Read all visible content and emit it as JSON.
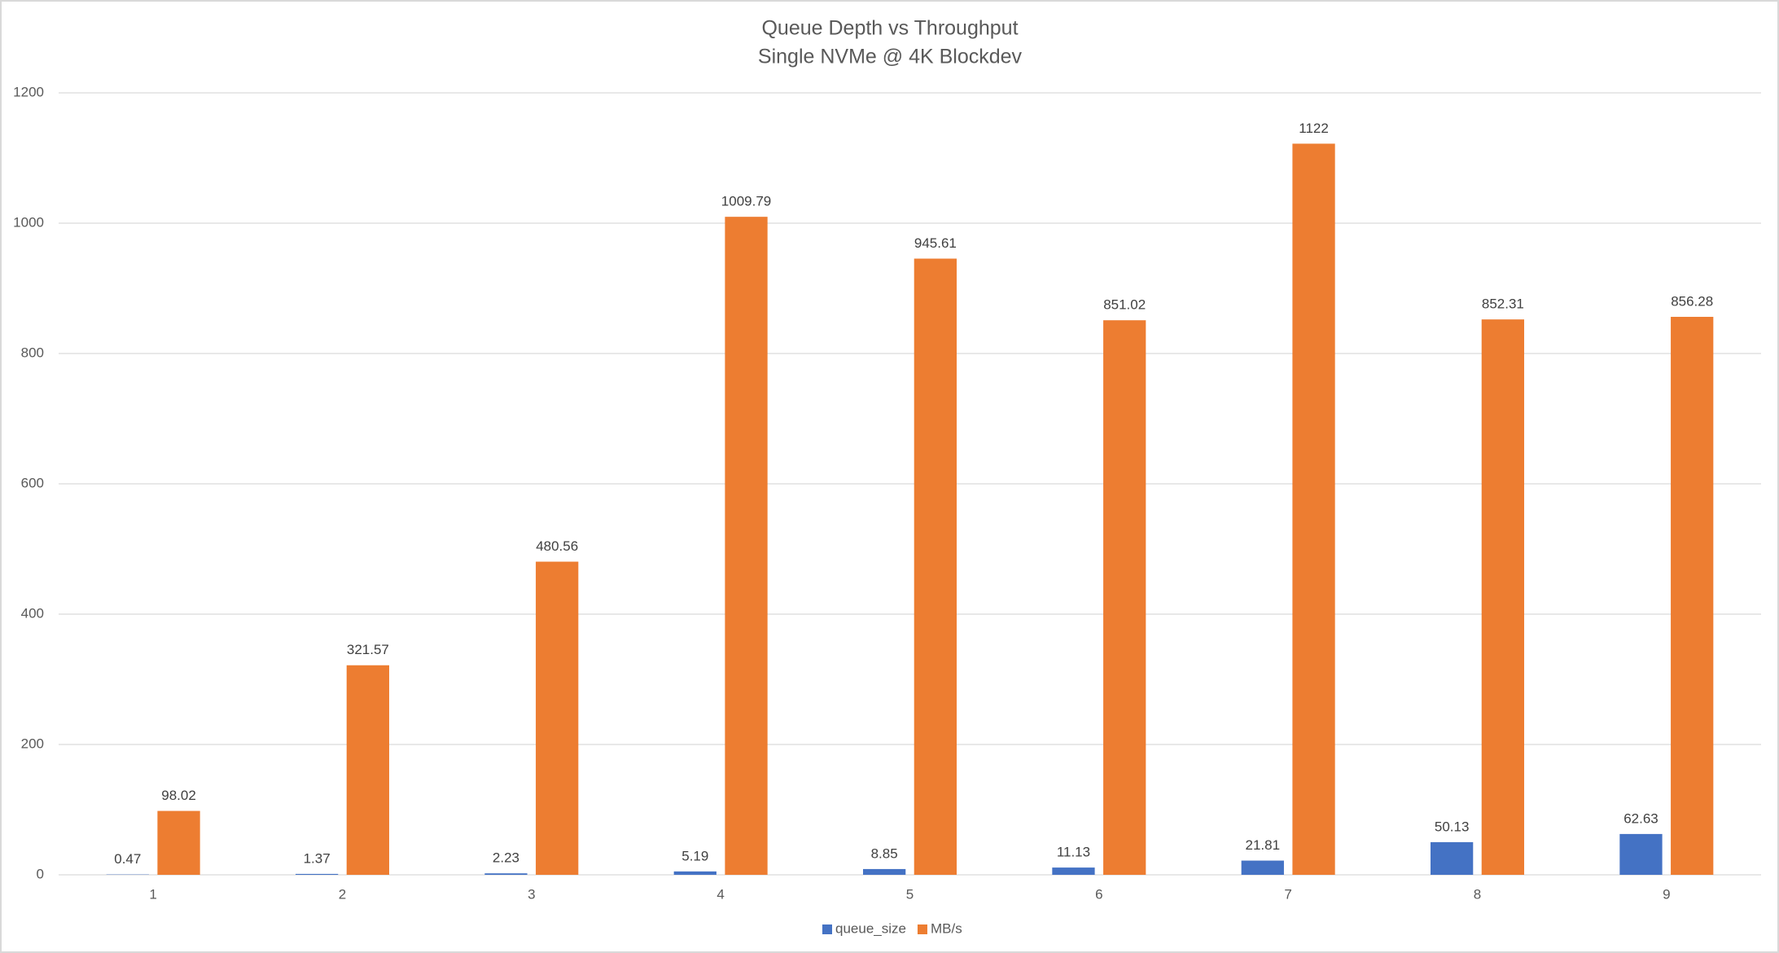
{
  "chart_data": {
    "type": "bar",
    "title": "Queue Depth vs Throughput",
    "subtitle": "Single NVMe @ 4K Blockdev",
    "categories": [
      "1",
      "2",
      "3",
      "4",
      "5",
      "6",
      "7",
      "8",
      "9"
    ],
    "series": [
      {
        "name": "queue_size",
        "color": "#4472c4",
        "values": [
          0.47,
          1.37,
          2.23,
          5.19,
          8.85,
          11.13,
          21.81,
          50.13,
          62.63
        ]
      },
      {
        "name": "MB/s",
        "color": "#ed7d31",
        "values": [
          98.02,
          321.57,
          480.56,
          1009.79,
          945.61,
          851.02,
          1122,
          852.31,
          856.28
        ]
      }
    ],
    "ylim": [
      0,
      1200
    ],
    "yticks": [
      0,
      200,
      400,
      600,
      800,
      1000,
      1200
    ],
    "grid": true,
    "legend": "bottom"
  }
}
